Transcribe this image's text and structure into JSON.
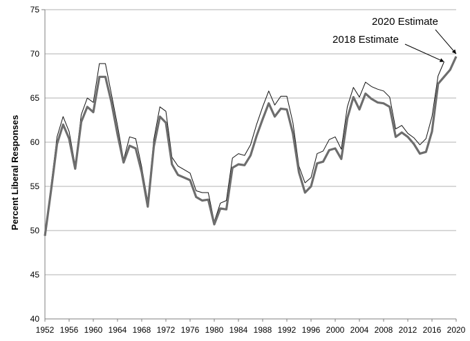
{
  "chart_data": {
    "type": "line",
    "title": "",
    "xlabel": "",
    "ylabel": "Percent Liberal Responses",
    "xlim": [
      1952,
      2020
    ],
    "ylim": [
      40,
      75
    ],
    "x_ticks": [
      1952,
      1956,
      1960,
      1964,
      1968,
      1972,
      1976,
      1980,
      1984,
      1988,
      1992,
      1996,
      2000,
      2004,
      2008,
      2012,
      2016,
      2020
    ],
    "y_ticks": [
      40,
      45,
      50,
      55,
      60,
      65,
      70,
      75
    ],
    "grid": "horizontal",
    "legend": "none",
    "colors": {
      "thick": "#6d6d6d",
      "thin": "#111111",
      "grid": "#b0b0b0",
      "axis": "#7f7f7f"
    },
    "annotations": [
      {
        "text": "2020 Estimate",
        "x": 2020,
        "y": 70.0
      },
      {
        "text": "2018 Estimate",
        "x": 2018,
        "y": 69.1
      }
    ],
    "series": [
      {
        "style": "thick",
        "x": [
          1952,
          1953,
          1954,
          1955,
          1956,
          1957,
          1958,
          1959,
          1960,
          1961,
          1962,
          1963,
          1964,
          1965,
          1966,
          1967,
          1968,
          1969,
          1970,
          1971,
          1972,
          1973,
          1974,
          1975,
          1976,
          1977,
          1978,
          1979,
          1980,
          1981,
          1982,
          1983,
          1984,
          1985,
          1986,
          1987,
          1988,
          1989,
          1990,
          1991,
          1992,
          1993,
          1994,
          1995,
          1996,
          1997,
          1998,
          1999,
          2000,
          2001,
          2002,
          2003,
          2004,
          2005,
          2006,
          2007,
          2008,
          2009,
          2010,
          2011,
          2012,
          2013,
          2014,
          2015,
          2016,
          2017,
          2018,
          2019,
          2020
        ],
        "y": [
          49.4,
          54.5,
          59.8,
          62.0,
          60.4,
          57.0,
          62.3,
          64.0,
          63.4,
          67.4,
          67.4,
          64.5,
          60.9,
          57.7,
          59.6,
          59.3,
          56.6,
          52.7,
          59.5,
          62.9,
          62.2,
          57.5,
          56.3,
          56.0,
          55.7,
          53.8,
          53.4,
          53.5,
          50.7,
          52.5,
          52.4,
          57.1,
          57.5,
          57.4,
          58.5,
          60.7,
          62.6,
          64.4,
          62.9,
          63.8,
          63.7,
          61.0,
          56.6,
          54.3,
          55.0,
          57.6,
          57.8,
          59.1,
          59.3,
          58.1,
          62.7,
          65.1,
          63.7,
          65.5,
          64.9,
          64.5,
          64.4,
          64.0,
          60.6,
          61.1,
          60.6,
          59.8,
          58.7,
          58.9,
          61.2,
          66.6,
          67.4,
          68.2,
          69.7
        ]
      },
      {
        "style": "thin",
        "x": [
          1952,
          1953,
          1954,
          1955,
          1956,
          1957,
          1958,
          1959,
          1960,
          1961,
          1962,
          1963,
          1964,
          1965,
          1966,
          1967,
          1968,
          1969,
          1970,
          1971,
          1972,
          1973,
          1974,
          1975,
          1976,
          1977,
          1978,
          1979,
          1980,
          1981,
          1982,
          1983,
          1984,
          1985,
          1986,
          1987,
          1988,
          1989,
          1990,
          1991,
          1992,
          1993,
          1994,
          1995,
          1996,
          1997,
          1998,
          1999,
          2000,
          2001,
          2002,
          2003,
          2004,
          2005,
          2006,
          2007,
          2008,
          2009,
          2010,
          2011,
          2012,
          2013,
          2014,
          2015,
          2016,
          2017,
          2018
        ],
        "y": [
          49.4,
          55.1,
          60.6,
          62.9,
          61.2,
          57.4,
          63.1,
          65.0,
          64.5,
          68.9,
          68.9,
          65.4,
          61.9,
          58.0,
          60.6,
          60.4,
          57.2,
          53.3,
          60.3,
          64.0,
          63.5,
          58.3,
          57.3,
          56.9,
          56.5,
          54.5,
          54.3,
          54.3,
          51.0,
          53.1,
          53.4,
          58.2,
          58.7,
          58.5,
          59.7,
          62.0,
          64.0,
          65.8,
          64.2,
          65.2,
          65.2,
          62.2,
          57.3,
          55.4,
          56.0,
          58.7,
          59.0,
          60.3,
          60.6,
          59.2,
          64.0,
          66.2,
          65.1,
          66.8,
          66.3,
          66.0,
          65.8,
          65.1,
          61.5,
          61.9,
          61.0,
          60.5,
          59.7,
          60.4,
          62.9,
          67.5,
          69.1
        ]
      }
    ]
  }
}
